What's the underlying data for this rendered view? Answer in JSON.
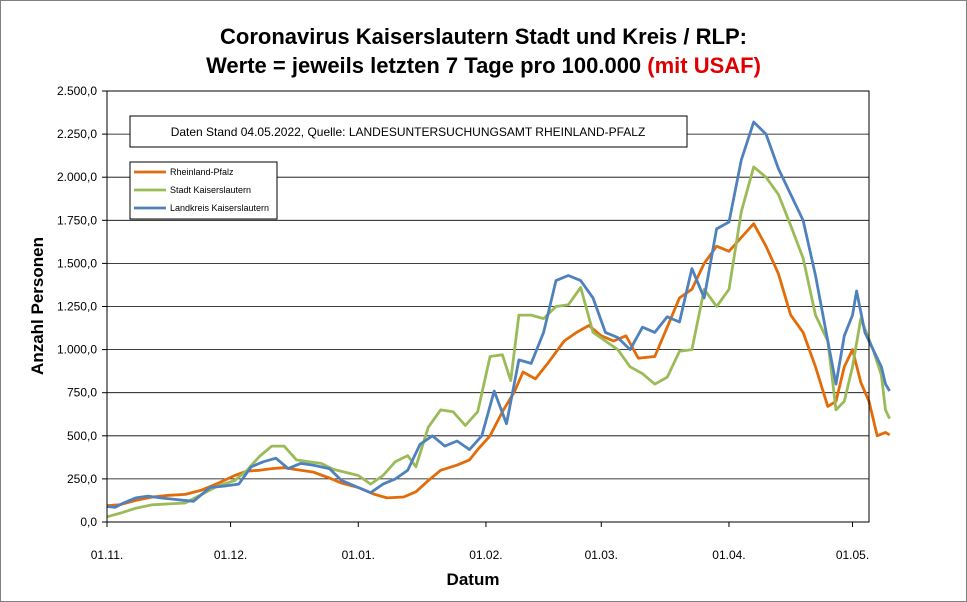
{
  "title": {
    "line1": "Coronavirus Kaiserslautern Stadt und Kreis / RLP:",
    "line2_main": "Werte = jeweils letzten 7 Tage pro 100.000 ",
    "line2_red": "(mit USAF)"
  },
  "note": "Daten Stand 04.05.2022, Quelle: LANDESUNTERSUCHUNGSAMT RHEINLAND-PFALZ",
  "chart_data": {
    "type": "line",
    "xlabel": "Datum",
    "ylabel": "Anzahl Personen",
    "ylim": [
      0,
      2500
    ],
    "yticks": [
      0,
      250,
      500,
      750,
      1000,
      1250,
      1500,
      1750,
      2000,
      2250,
      2500
    ],
    "ytick_labels": [
      "0,0",
      "250,0",
      "500,0",
      "750,0",
      "1.000,0",
      "1.250,0",
      "1.500,0",
      "1.750,0",
      "2.000,0",
      "2.250,0",
      "2.500,0"
    ],
    "xlim": [
      "2021-11-01",
      "2022-05-05"
    ],
    "xticks": [
      {
        "date": "2021-11-01",
        "label": "01.11."
      },
      {
        "date": "2021-12-01",
        "label": "01.12."
      },
      {
        "date": "2022-01-01",
        "label": "01.01."
      },
      {
        "date": "2022-02-01",
        "label": "01.02."
      },
      {
        "date": "2022-03-01",
        "label": "01.03."
      },
      {
        "date": "2022-04-01",
        "label": "01.04."
      },
      {
        "date": "2022-05-01",
        "label": "01.05."
      }
    ],
    "grid": "horizontal",
    "legend_position": "top-left",
    "series": [
      {
        "name": "Rheinland-Pfalz",
        "color": "#e36c0a",
        "points": [
          [
            "2021-11-01",
            95
          ],
          [
            "2021-11-04",
            100
          ],
          [
            "2021-11-08",
            125
          ],
          [
            "2021-11-12",
            145
          ],
          [
            "2021-11-16",
            155
          ],
          [
            "2021-11-20",
            160
          ],
          [
            "2021-11-24",
            185
          ],
          [
            "2021-11-28",
            225
          ],
          [
            "2021-12-02",
            270
          ],
          [
            "2021-12-05",
            295
          ],
          [
            "2021-12-08",
            300
          ],
          [
            "2021-12-11",
            310
          ],
          [
            "2021-12-14",
            315
          ],
          [
            "2021-12-18",
            300
          ],
          [
            "2021-12-21",
            290
          ],
          [
            "2021-12-25",
            255
          ],
          [
            "2021-12-28",
            225
          ],
          [
            "2022-01-01",
            200
          ],
          [
            "2022-01-05",
            160
          ],
          [
            "2022-01-08",
            140
          ],
          [
            "2022-01-12",
            145
          ],
          [
            "2022-01-15",
            175
          ],
          [
            "2022-01-18",
            240
          ],
          [
            "2022-01-21",
            300
          ],
          [
            "2022-01-25",
            330
          ],
          [
            "2022-01-28",
            360
          ],
          [
            "2022-01-30",
            420
          ],
          [
            "2022-02-02",
            500
          ],
          [
            "2022-02-05",
            640
          ],
          [
            "2022-02-08",
            760
          ],
          [
            "2022-02-10",
            870
          ],
          [
            "2022-02-13",
            830
          ],
          [
            "2022-02-16",
            920
          ],
          [
            "2022-02-20",
            1050
          ],
          [
            "2022-02-23",
            1100
          ],
          [
            "2022-02-26",
            1140
          ],
          [
            "2022-03-01",
            1080
          ],
          [
            "2022-03-04",
            1050
          ],
          [
            "2022-03-07",
            1080
          ],
          [
            "2022-03-10",
            950
          ],
          [
            "2022-03-14",
            960
          ],
          [
            "2022-03-17",
            1130
          ],
          [
            "2022-03-20",
            1300
          ],
          [
            "2022-03-23",
            1350
          ],
          [
            "2022-03-26",
            1500
          ],
          [
            "2022-03-29",
            1600
          ],
          [
            "2022-04-01",
            1570
          ],
          [
            "2022-04-04",
            1650
          ],
          [
            "2022-04-07",
            1730
          ],
          [
            "2022-04-10",
            1600
          ],
          [
            "2022-04-13",
            1440
          ],
          [
            "2022-04-16",
            1200
          ],
          [
            "2022-04-19",
            1100
          ],
          [
            "2022-04-22",
            900
          ],
          [
            "2022-04-25",
            670
          ],
          [
            "2022-04-27",
            700
          ],
          [
            "2022-04-29",
            900
          ],
          [
            "2022-05-01",
            1000
          ],
          [
            "2022-05-03",
            810
          ],
          [
            "2022-05-05",
            700
          ],
          [
            "2022-05-07",
            500
          ],
          [
            "2022-05-09",
            520
          ],
          [
            "2022-05-10",
            505
          ]
        ]
      },
      {
        "name": "Stadt Kaiserslautern",
        "color": "#9bbb59",
        "points": [
          [
            "2021-11-01",
            30
          ],
          [
            "2021-11-04",
            50
          ],
          [
            "2021-11-08",
            80
          ],
          [
            "2021-11-12",
            100
          ],
          [
            "2021-11-16",
            105
          ],
          [
            "2021-11-20",
            110
          ],
          [
            "2021-11-24",
            160
          ],
          [
            "2021-11-28",
            210
          ],
          [
            "2021-12-02",
            240
          ],
          [
            "2021-12-05",
            300
          ],
          [
            "2021-12-08",
            380
          ],
          [
            "2021-12-11",
            440
          ],
          [
            "2021-12-14",
            440
          ],
          [
            "2021-12-17",
            360
          ],
          [
            "2021-12-20",
            350
          ],
          [
            "2021-12-23",
            340
          ],
          [
            "2021-12-26",
            305
          ],
          [
            "2022-01-01",
            270
          ],
          [
            "2022-01-04",
            220
          ],
          [
            "2022-01-07",
            270
          ],
          [
            "2022-01-10",
            350
          ],
          [
            "2022-01-13",
            385
          ],
          [
            "2022-01-15",
            320
          ],
          [
            "2022-01-18",
            550
          ],
          [
            "2022-01-21",
            650
          ],
          [
            "2022-01-24",
            640
          ],
          [
            "2022-01-27",
            560
          ],
          [
            "2022-01-30",
            640
          ],
          [
            "2022-02-02",
            960
          ],
          [
            "2022-02-05",
            970
          ],
          [
            "2022-02-07",
            820
          ],
          [
            "2022-02-09",
            1200
          ],
          [
            "2022-02-12",
            1200
          ],
          [
            "2022-02-15",
            1180
          ],
          [
            "2022-02-18",
            1250
          ],
          [
            "2022-02-21",
            1260
          ],
          [
            "2022-02-24",
            1360
          ],
          [
            "2022-02-27",
            1100
          ],
          [
            "2022-03-02",
            1050
          ],
          [
            "2022-03-05",
            1000
          ],
          [
            "2022-03-08",
            900
          ],
          [
            "2022-03-11",
            860
          ],
          [
            "2022-03-14",
            800
          ],
          [
            "2022-03-17",
            840
          ],
          [
            "2022-03-20",
            990
          ],
          [
            "2022-03-23",
            1000
          ],
          [
            "2022-03-26",
            1350
          ],
          [
            "2022-03-29",
            1250
          ],
          [
            "2022-04-01",
            1350
          ],
          [
            "2022-04-04",
            1800
          ],
          [
            "2022-04-07",
            2060
          ],
          [
            "2022-04-10",
            2000
          ],
          [
            "2022-04-13",
            1900
          ],
          [
            "2022-04-16",
            1720
          ],
          [
            "2022-04-19",
            1530
          ],
          [
            "2022-04-22",
            1200
          ],
          [
            "2022-04-25",
            1050
          ],
          [
            "2022-04-27",
            650
          ],
          [
            "2022-04-29",
            700
          ],
          [
            "2022-05-01",
            900
          ],
          [
            "2022-05-03",
            1180
          ],
          [
            "2022-05-06",
            1000
          ],
          [
            "2022-05-08",
            850
          ],
          [
            "2022-05-09",
            650
          ],
          [
            "2022-05-10",
            600
          ]
        ]
      },
      {
        "name": "Landkreis Kaiserslautern",
        "color": "#4f81bd",
        "points": [
          [
            "2021-11-01",
            90
          ],
          [
            "2021-11-03",
            85
          ],
          [
            "2021-11-05",
            110
          ],
          [
            "2021-11-08",
            140
          ],
          [
            "2021-11-11",
            150
          ],
          [
            "2021-11-14",
            140
          ],
          [
            "2021-11-18",
            130
          ],
          [
            "2021-11-22",
            120
          ],
          [
            "2021-11-26",
            200
          ],
          [
            "2021-11-30",
            210
          ],
          [
            "2021-12-03",
            220
          ],
          [
            "2021-12-06",
            320
          ],
          [
            "2021-12-09",
            350
          ],
          [
            "2021-12-12",
            370
          ],
          [
            "2021-12-15",
            310
          ],
          [
            "2021-12-18",
            340
          ],
          [
            "2021-12-21",
            330
          ],
          [
            "2021-12-25",
            310
          ],
          [
            "2021-12-28",
            240
          ],
          [
            "2022-01-01",
            200
          ],
          [
            "2022-01-04",
            170
          ],
          [
            "2022-01-07",
            220
          ],
          [
            "2022-01-10",
            250
          ],
          [
            "2022-01-13",
            300
          ],
          [
            "2022-01-16",
            450
          ],
          [
            "2022-01-19",
            500
          ],
          [
            "2022-01-22",
            440
          ],
          [
            "2022-01-25",
            470
          ],
          [
            "2022-01-28",
            420
          ],
          [
            "2022-01-31",
            500
          ],
          [
            "2022-02-03",
            760
          ],
          [
            "2022-02-06",
            570
          ],
          [
            "2022-02-09",
            940
          ],
          [
            "2022-02-12",
            920
          ],
          [
            "2022-02-15",
            1100
          ],
          [
            "2022-02-18",
            1400
          ],
          [
            "2022-02-21",
            1430
          ],
          [
            "2022-02-24",
            1400
          ],
          [
            "2022-02-27",
            1300
          ],
          [
            "2022-03-02",
            1100
          ],
          [
            "2022-03-05",
            1070
          ],
          [
            "2022-03-08",
            1000
          ],
          [
            "2022-03-11",
            1130
          ],
          [
            "2022-03-14",
            1100
          ],
          [
            "2022-03-17",
            1190
          ],
          [
            "2022-03-20",
            1160
          ],
          [
            "2022-03-23",
            1470
          ],
          [
            "2022-03-26",
            1300
          ],
          [
            "2022-03-29",
            1700
          ],
          [
            "2022-04-01",
            1740
          ],
          [
            "2022-04-04",
            2100
          ],
          [
            "2022-04-07",
            2320
          ],
          [
            "2022-04-10",
            2250
          ],
          [
            "2022-04-13",
            2050
          ],
          [
            "2022-04-16",
            1900
          ],
          [
            "2022-04-19",
            1750
          ],
          [
            "2022-04-22",
            1430
          ],
          [
            "2022-04-25",
            1050
          ],
          [
            "2022-04-27",
            800
          ],
          [
            "2022-04-29",
            1080
          ],
          [
            "2022-05-01",
            1200
          ],
          [
            "2022-05-02",
            1340
          ],
          [
            "2022-05-04",
            1100
          ],
          [
            "2022-05-06",
            1000
          ],
          [
            "2022-05-08",
            900
          ],
          [
            "2022-05-09",
            800
          ],
          [
            "2022-05-10",
            760
          ]
        ]
      }
    ]
  }
}
